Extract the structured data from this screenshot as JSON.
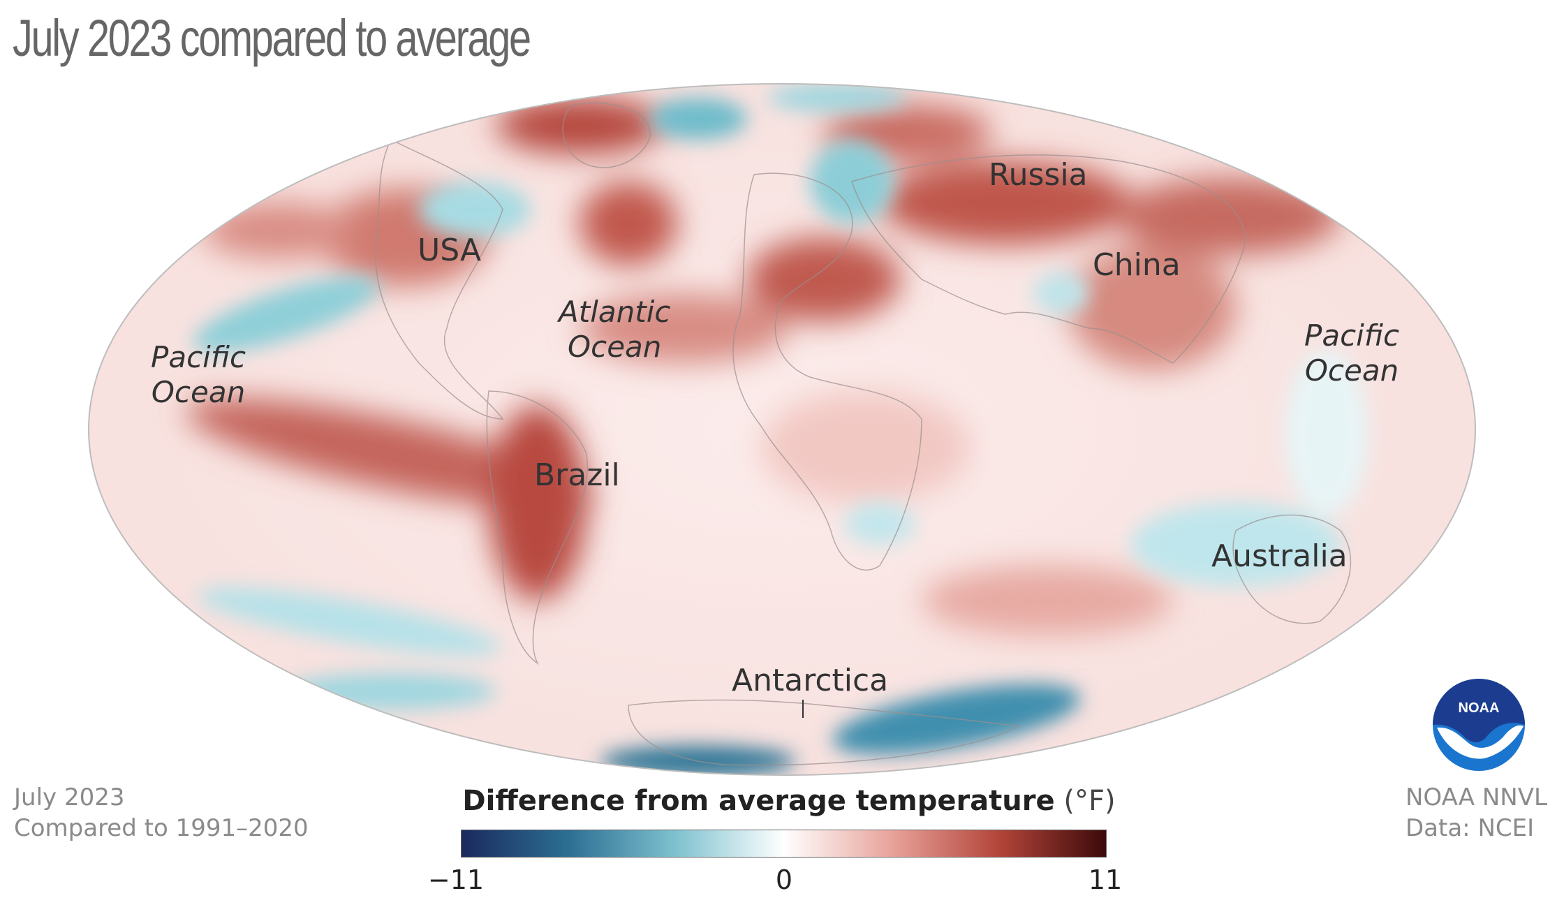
{
  "title": "July 2023 compared to average",
  "labels": {
    "usa": "USA",
    "russia": "Russia",
    "china": "China",
    "brazil": "Brazil",
    "australia": "Australia",
    "antarctica": "Antarctica"
  },
  "oceans": {
    "atlantic_line1": "Atlantic",
    "atlantic_line2": "Ocean",
    "pacific_west_line1": "Pacific",
    "pacific_west_line2": "Ocean",
    "pacific_east_line1": "Pacific",
    "pacific_east_line2": "Ocean"
  },
  "footnote_left": {
    "line1": "July 2023",
    "line2": "Compared to 1991–2020"
  },
  "footnote_right": {
    "line1": "NOAA NNVL",
    "line2": "Data: NCEI"
  },
  "legend": {
    "title": "Difference from average temperature",
    "unit": "(°F)",
    "min": "−11",
    "mid": "0",
    "max": "11",
    "colors": [
      "#1b2a5e",
      "#2c6f93",
      "#7fc2cf",
      "#ffffff",
      "#e8a39b",
      "#b3453a",
      "#3d0a0a"
    ]
  },
  "logo": {
    "text": "NOAA",
    "icon": "noaa-logo-icon"
  },
  "colors": {
    "warm_light": "#f4d7d4",
    "warm_mid": "#d98b82",
    "warm_dark": "#a2372e",
    "cool_light": "#d3eef2",
    "cool_mid": "#7fc6d2",
    "cool_dark": "#2a7f9a"
  }
}
